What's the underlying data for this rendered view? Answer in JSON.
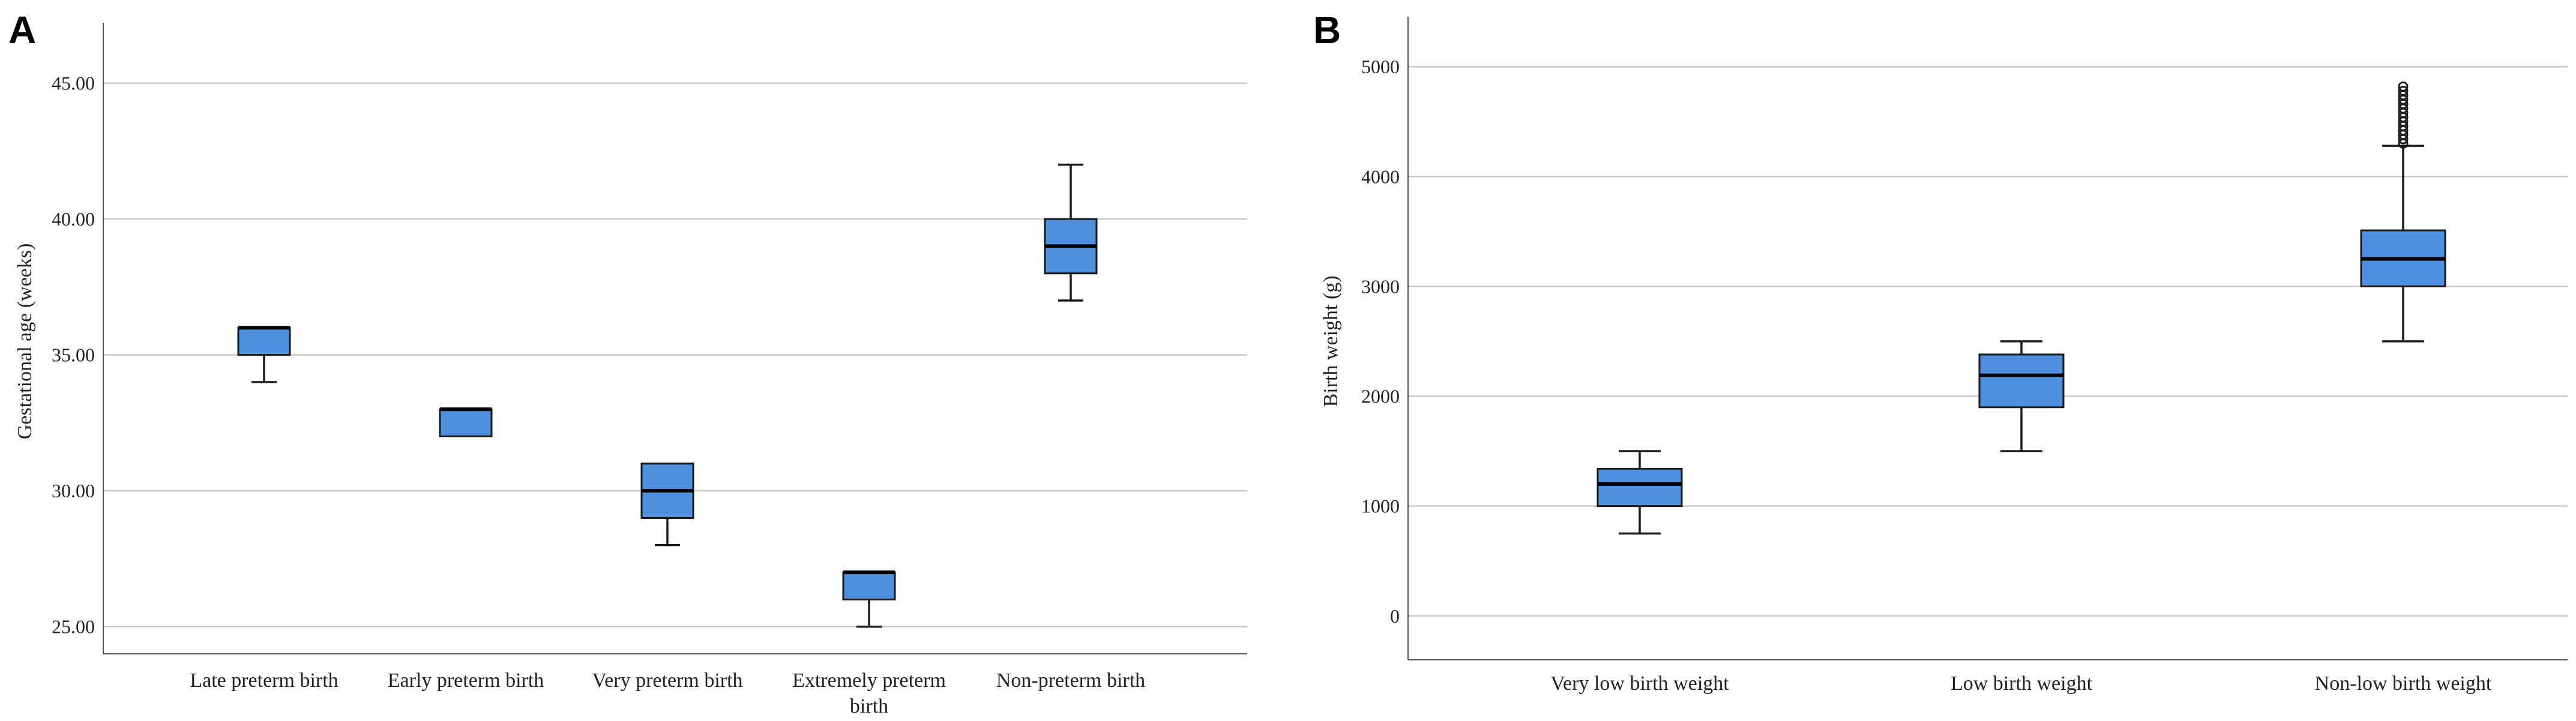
{
  "chart_data": [
    {
      "type": "box",
      "panel": "A",
      "title": "",
      "xlabel": "",
      "ylabel": "Gestational age (weeks)",
      "ylim": [
        24,
        47
      ],
      "yticks": [
        25,
        30,
        35,
        40,
        45
      ],
      "ytick_labels": [
        "25.00",
        "30.00",
        "35.00",
        "40.00",
        "45.00"
      ],
      "grid": true,
      "categories": [
        [
          "Late preterm birth"
        ],
        [
          "Early preterm birth"
        ],
        [
          "Very preterm birth"
        ],
        [
          "Extremely preterm",
          "birth"
        ],
        [
          "Non-preterm birth"
        ]
      ],
      "boxes": [
        {
          "min": 34,
          "q1": 35,
          "median": 36,
          "q3": 36,
          "max": 36,
          "outliers": []
        },
        {
          "min": 32,
          "q1": 32,
          "median": 33,
          "q3": 33,
          "max": 33,
          "outliers": []
        },
        {
          "min": 28,
          "q1": 29,
          "median": 30,
          "q3": 31,
          "max": 31,
          "outliers": []
        },
        {
          "min": 25,
          "q1": 26,
          "median": 27,
          "q3": 27,
          "max": 27,
          "outliers": []
        },
        {
          "min": 37,
          "q1": 38,
          "median": 39,
          "q3": 40,
          "max": 42,
          "outliers": []
        }
      ]
    },
    {
      "type": "box",
      "panel": "B",
      "title": "",
      "xlabel": "",
      "ylabel": "Birth weight (g)",
      "ylim": [
        -400,
        5400
      ],
      "yticks": [
        0,
        1000,
        2000,
        3000,
        4000,
        5000
      ],
      "ytick_labels": [
        "0",
        "1000",
        "2000",
        "3000",
        "4000",
        "5000"
      ],
      "grid": true,
      "categories": [
        [
          "Very low birth weight"
        ],
        [
          "Low birth weight"
        ],
        [
          "Non-low birth weight"
        ]
      ],
      "boxes": [
        {
          "min": 750,
          "q1": 1000,
          "median": 1200,
          "q3": 1340,
          "max": 1500,
          "outliers": []
        },
        {
          "min": 1500,
          "q1": 1900,
          "median": 2190,
          "q3": 2380,
          "max": 2500,
          "outliers": []
        },
        {
          "min": 2500,
          "q1": 3000,
          "median": 3250,
          "q3": 3510,
          "max": 4280,
          "outliers": [
            4300,
            4340,
            4380,
            4420,
            4460,
            4500,
            4540,
            4580,
            4620,
            4660,
            4700,
            4740,
            4780,
            4820
          ]
        }
      ]
    }
  ]
}
